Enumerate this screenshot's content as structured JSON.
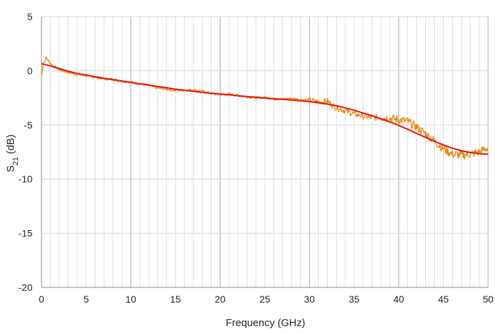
{
  "chart_data": {
    "type": "line",
    "title": "",
    "xlabel": "Frequency (GHz)",
    "ylabel_main": "S",
    "ylabel_sub": "21",
    "ylabel_unit": " (dB)",
    "xlim": [
      0,
      50
    ],
    "ylim": [
      -20,
      5
    ],
    "x_ticks": [
      0,
      5,
      10,
      15,
      20,
      25,
      30,
      35,
      40,
      45,
      50
    ],
    "y_ticks": [
      5,
      0,
      -5,
      -10,
      -15,
      -20
    ],
    "grid": {
      "horizontal": true,
      "vertical_minor_step": 1,
      "vertical_major_step": 10
    },
    "legend": "none",
    "colors": {
      "measured": "#E8870E",
      "fit": "#E01010",
      "grid_minor": "#d4d4d4",
      "grid_major": "#a6a6a6",
      "axis": "#8a8a8a"
    },
    "series": [
      {
        "role": "measured",
        "style": "noisy",
        "x": [
          0,
          0.2,
          0.5,
          0.8,
          1.2,
          1.6,
          2,
          3,
          4,
          5,
          6,
          7,
          8,
          9,
          10,
          11,
          12,
          13,
          14,
          15,
          16,
          17,
          18,
          19,
          20,
          21,
          22,
          23,
          24,
          25,
          26,
          27,
          28,
          29,
          30,
          31,
          32,
          33,
          34,
          35,
          36,
          37,
          38,
          39,
          40,
          41,
          42,
          43,
          44,
          45,
          46,
          47,
          48,
          49,
          50
        ],
        "y": [
          -0.5,
          0.6,
          1.2,
          0.9,
          0.5,
          0.3,
          0.1,
          -0.15,
          -0.35,
          -0.45,
          -0.6,
          -0.75,
          -0.8,
          -0.95,
          -1.05,
          -1.2,
          -1.35,
          -1.6,
          -1.7,
          -1.8,
          -1.8,
          -1.75,
          -1.9,
          -2.1,
          -2.2,
          -2.15,
          -2.3,
          -2.4,
          -2.5,
          -2.45,
          -2.6,
          -2.6,
          -2.55,
          -2.65,
          -2.7,
          -2.9,
          -2.8,
          -3.4,
          -3.7,
          -4.0,
          -4.2,
          -4.35,
          -4.3,
          -4.4,
          -4.5,
          -4.7,
          -5.2,
          -5.8,
          -6.5,
          -7.2,
          -7.7,
          -7.8,
          -7.7,
          -7.5,
          -7.1
        ]
      },
      {
        "role": "fit",
        "style": "smooth",
        "x": [
          0,
          1,
          2,
          3,
          4,
          5,
          6,
          7,
          8,
          9,
          10,
          11,
          12,
          13,
          14,
          15,
          16,
          17,
          18,
          19,
          20,
          21,
          22,
          23,
          24,
          25,
          26,
          27,
          28,
          29,
          30,
          31,
          32,
          33,
          34,
          35,
          36,
          37,
          38,
          39,
          40,
          41,
          42,
          43,
          44,
          45,
          46,
          47,
          48,
          49,
          50
        ],
        "y": [
          0.65,
          0.45,
          0.2,
          -0.05,
          -0.25,
          -0.4,
          -0.55,
          -0.7,
          -0.82,
          -0.95,
          -1.07,
          -1.2,
          -1.32,
          -1.45,
          -1.57,
          -1.7,
          -1.8,
          -1.9,
          -2.0,
          -2.08,
          -2.15,
          -2.22,
          -2.3,
          -2.38,
          -2.45,
          -2.52,
          -2.58,
          -2.64,
          -2.7,
          -2.77,
          -2.85,
          -2.95,
          -3.08,
          -3.24,
          -3.42,
          -3.65,
          -3.9,
          -4.15,
          -4.42,
          -4.72,
          -5.05,
          -5.4,
          -5.78,
          -6.15,
          -6.52,
          -6.85,
          -7.15,
          -7.38,
          -7.55,
          -7.66,
          -7.7
        ]
      }
    ]
  }
}
